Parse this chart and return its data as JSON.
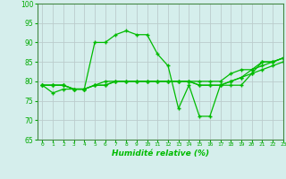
{
  "title": "",
  "xlabel": "Humidité relative (%)",
  "ylabel": "",
  "background_color": "#d5eeec",
  "grid_color": "#bbcccc",
  "line_color": "#00bb00",
  "xlim": [
    -0.5,
    23
  ],
  "ylim": [
    65,
    100
  ],
  "yticks": [
    65,
    70,
    75,
    80,
    85,
    90,
    95,
    100
  ],
  "xticks": [
    0,
    1,
    2,
    3,
    4,
    5,
    6,
    7,
    8,
    9,
    10,
    11,
    12,
    13,
    14,
    15,
    16,
    17,
    18,
    19,
    20,
    21,
    22,
    23
  ],
  "series": [
    [
      79,
      77,
      78,
      78,
      78,
      90,
      90,
      92,
      93,
      92,
      92,
      87,
      84,
      73,
      79,
      71,
      71,
      79,
      79,
      79,
      82,
      85,
      85,
      86
    ],
    [
      79,
      79,
      79,
      78,
      78,
      79,
      79,
      80,
      80,
      80,
      80,
      80,
      80,
      80,
      80,
      79,
      79,
      79,
      80,
      81,
      82,
      83,
      84,
      85
    ],
    [
      79,
      79,
      79,
      78,
      78,
      79,
      80,
      80,
      80,
      80,
      80,
      80,
      80,
      80,
      80,
      80,
      80,
      80,
      82,
      83,
      83,
      85,
      85,
      86
    ],
    [
      79,
      79,
      79,
      78,
      78,
      79,
      79,
      80,
      80,
      80,
      80,
      80,
      80,
      80,
      80,
      79,
      79,
      79,
      80,
      81,
      83,
      84,
      85,
      86
    ]
  ]
}
